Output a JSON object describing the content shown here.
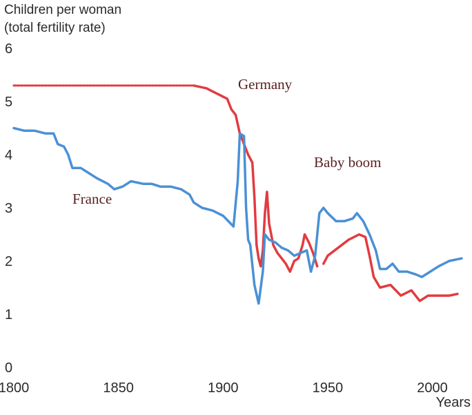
{
  "chart_data": {
    "type": "line",
    "ylabel": [
      "Children per woman",
      "(total fertility rate)"
    ],
    "xlabel": "Years",
    "xlim": [
      1800,
      2015
    ],
    "ylim": [
      0,
      6
    ],
    "xticks": [
      1800,
      1850,
      1900,
      1950,
      2000
    ],
    "yticks": [
      0,
      1,
      2,
      3,
      4,
      5,
      6
    ],
    "grid": false,
    "annotations": [
      "Germany",
      "Baby boom",
      "France"
    ],
    "series": [
      {
        "name": "Germany",
        "color": "#e23b40",
        "segments": [
          {
            "dashed": true,
            "points": [
              [
                1800,
                5.3
              ],
              [
                1886,
                5.3
              ]
            ]
          },
          {
            "dashed": false,
            "points": [
              [
                1886,
                5.3
              ],
              [
                1892,
                5.25
              ],
              [
                1897,
                5.15
              ],
              [
                1902,
                5.05
              ],
              [
                1904,
                4.85
              ],
              [
                1906,
                4.75
              ],
              [
                1908,
                4.4
              ],
              [
                1910,
                4.2
              ],
              [
                1912,
                4.0
              ],
              [
                1914,
                3.85
              ],
              [
                1915,
                3.2
              ],
              [
                1916,
                2.3
              ],
              [
                1917,
                2.05
              ],
              [
                1918,
                1.9
              ],
              [
                1919,
                2.2
              ],
              [
                1920,
                2.9
              ],
              [
                1921,
                3.3
              ],
              [
                1922,
                2.7
              ],
              [
                1924,
                2.3
              ],
              [
                1926,
                2.15
              ],
              [
                1928,
                2.05
              ],
              [
                1930,
                1.95
              ],
              [
                1932,
                1.8
              ],
              [
                1934,
                2.0
              ],
              [
                1936,
                2.05
              ],
              [
                1938,
                2.3
              ],
              [
                1939,
                2.5
              ],
              [
                1941,
                2.35
              ],
              [
                1943,
                2.15
              ],
              [
                1945,
                1.9
              ]
            ]
          },
          {
            "dashed": false,
            "points": [
              [
                1948,
                1.95
              ],
              [
                1950,
                2.1
              ],
              [
                1955,
                2.25
              ],
              [
                1960,
                2.4
              ],
              [
                1965,
                2.5
              ],
              [
                1968,
                2.45
              ],
              [
                1970,
                2.1
              ],
              [
                1972,
                1.7
              ],
              [
                1975,
                1.5
              ],
              [
                1980,
                1.55
              ],
              [
                1985,
                1.35
              ],
              [
                1990,
                1.45
              ],
              [
                1994,
                1.25
              ],
              [
                1998,
                1.35
              ],
              [
                2003,
                1.35
              ],
              [
                2008,
                1.35
              ],
              [
                2012,
                1.38
              ]
            ]
          }
        ]
      },
      {
        "name": "France",
        "color": "#4a90d6",
        "segments": [
          {
            "dashed": false,
            "points": [
              [
                1800,
                4.5
              ],
              [
                1805,
                4.45
              ],
              [
                1810,
                4.45
              ],
              [
                1815,
                4.4
              ],
              [
                1819,
                4.4
              ],
              [
                1821,
                4.2
              ],
              [
                1824,
                4.15
              ],
              [
                1826,
                4.0
              ],
              [
                1828,
                3.75
              ],
              [
                1832,
                3.75
              ],
              [
                1836,
                3.65
              ],
              [
                1840,
                3.55
              ],
              [
                1845,
                3.45
              ],
              [
                1848,
                3.35
              ],
              [
                1852,
                3.4
              ],
              [
                1856,
                3.5
              ],
              [
                1862,
                3.45
              ],
              [
                1866,
                3.45
              ],
              [
                1870,
                3.4
              ],
              [
                1875,
                3.4
              ],
              [
                1880,
                3.35
              ],
              [
                1884,
                3.25
              ],
              [
                1886,
                3.1
              ],
              [
                1890,
                3.0
              ],
              [
                1895,
                2.95
              ],
              [
                1900,
                2.85
              ],
              [
                1905,
                2.65
              ],
              [
                1907,
                3.5
              ],
              [
                1908,
                4.4
              ],
              [
                1910,
                4.35
              ],
              [
                1911,
                3.0
              ],
              [
                1912,
                2.4
              ],
              [
                1913,
                2.3
              ],
              [
                1915,
                1.55
              ],
              [
                1917,
                1.2
              ],
              [
                1919,
                1.8
              ],
              [
                1920,
                2.5
              ],
              [
                1922,
                2.4
              ],
              [
                1925,
                2.35
              ],
              [
                1928,
                2.25
              ],
              [
                1931,
                2.2
              ],
              [
                1934,
                2.1
              ],
              [
                1937,
                2.15
              ],
              [
                1940,
                2.2
              ],
              [
                1942,
                1.8
              ],
              [
                1944,
                2.1
              ],
              [
                1946,
                2.9
              ],
              [
                1948,
                3.0
              ],
              [
                1950,
                2.9
              ],
              [
                1954,
                2.75
              ],
              [
                1958,
                2.75
              ],
              [
                1962,
                2.8
              ],
              [
                1964,
                2.9
              ],
              [
                1967,
                2.75
              ],
              [
                1970,
                2.5
              ],
              [
                1973,
                2.2
              ],
              [
                1975,
                1.85
              ],
              [
                1978,
                1.85
              ],
              [
                1981,
                1.95
              ],
              [
                1984,
                1.8
              ],
              [
                1988,
                1.8
              ],
              [
                1992,
                1.75
              ],
              [
                1995,
                1.7
              ],
              [
                1999,
                1.8
              ],
              [
                2003,
                1.9
              ],
              [
                2008,
                2.0
              ],
              [
                2014,
                2.05
              ]
            ]
          }
        ]
      }
    ]
  }
}
